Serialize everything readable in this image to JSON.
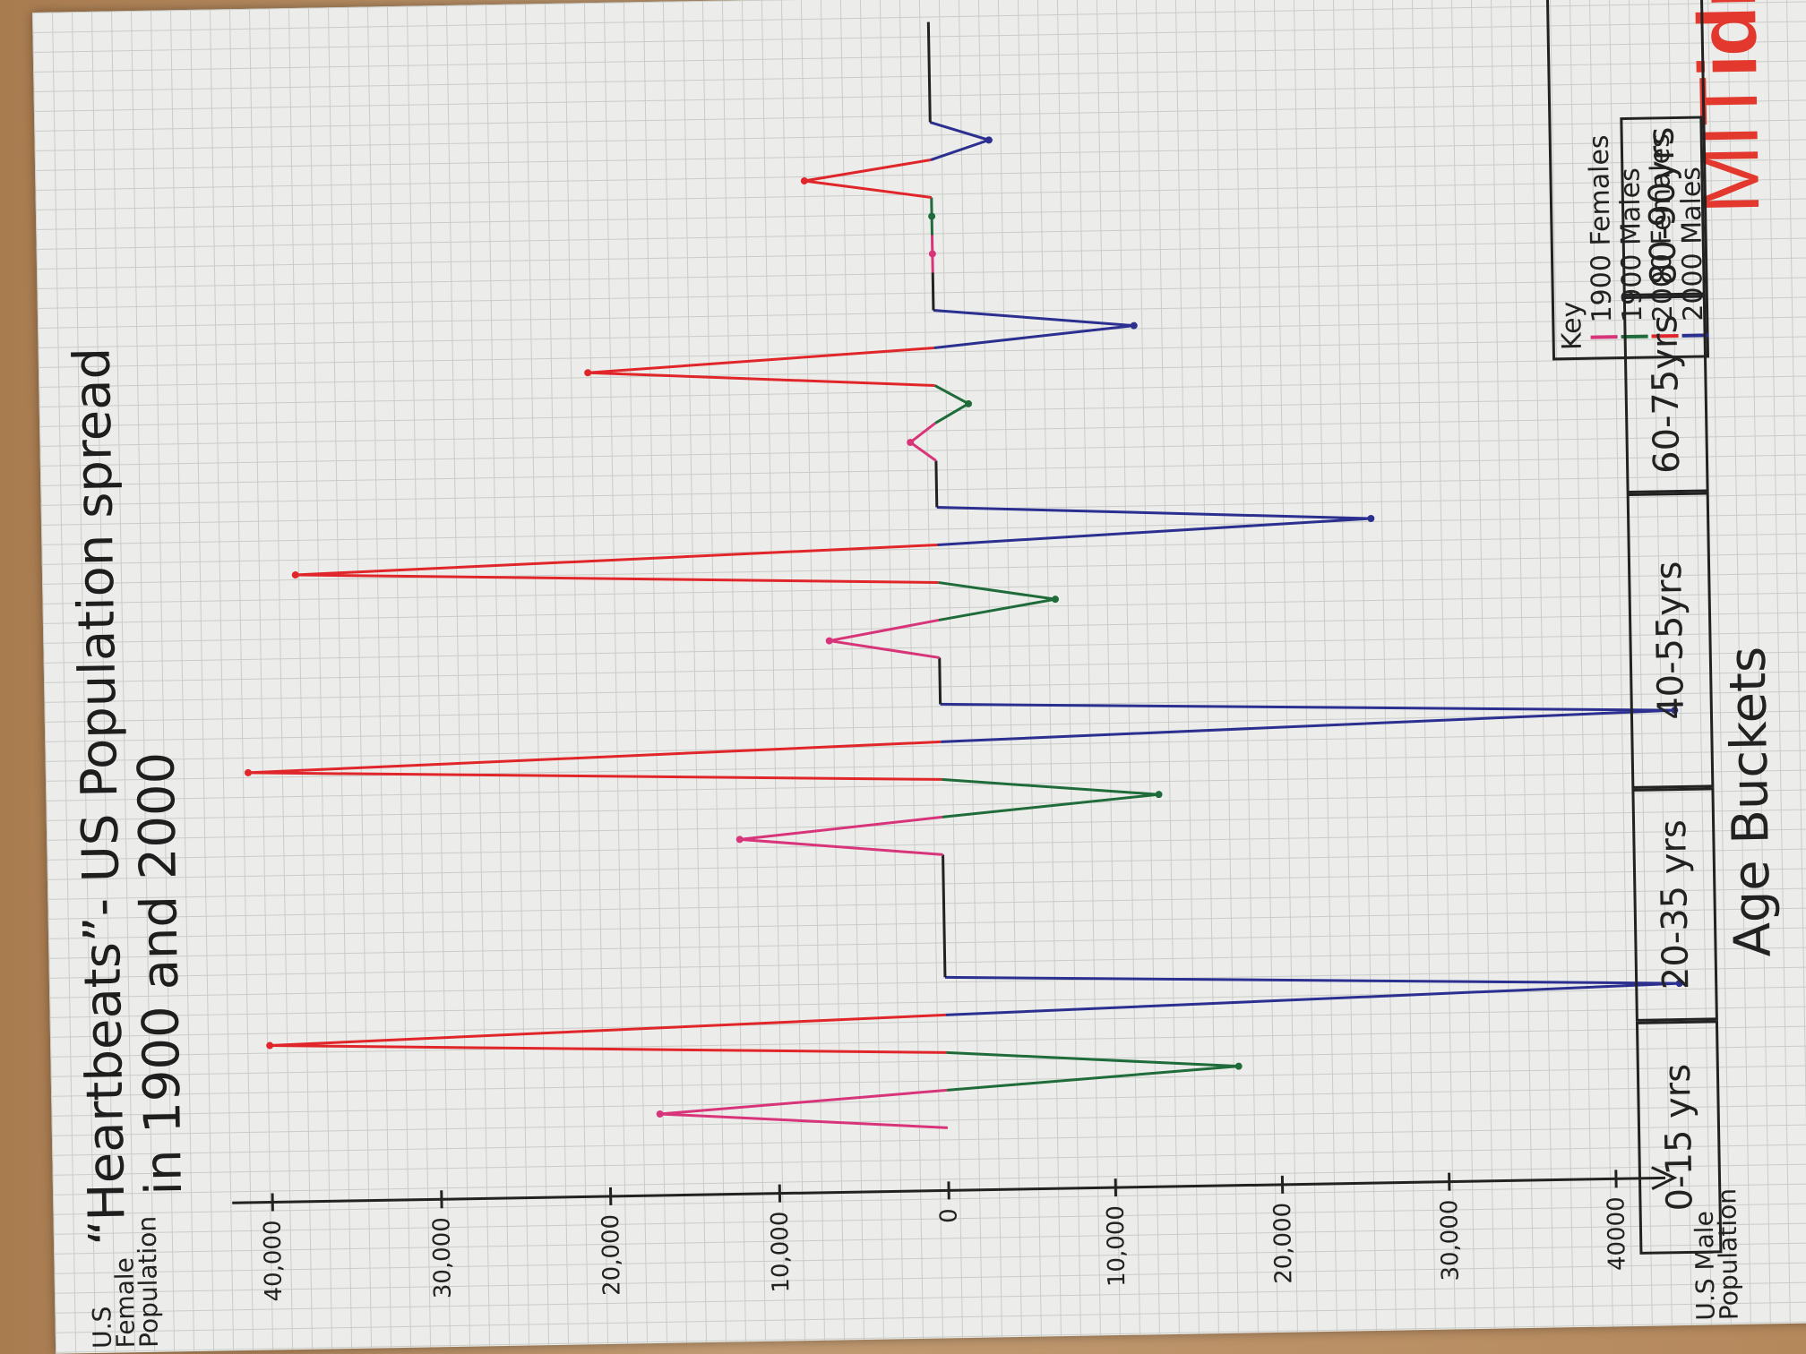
{
  "chart_data": {
    "type": "line",
    "title": "“Heartbeats”- US Population spread",
    "subtitle": "in 1900 and 2000",
    "xlabel": "Age Buckets",
    "y_upper_label": "U.S Female Population",
    "y_lower_label": "U.S Male Population",
    "y_ticks_female": [
      "40,000",
      "30,000",
      "20,000",
      "10,000"
    ],
    "y_ticks_male": [
      "0",
      "10,000",
      "20,000",
      "30,000",
      "40000"
    ],
    "ylim_female": [
      0,
      40000
    ],
    "ylim_male": [
      0,
      40000
    ],
    "categories": [
      "0-15 yrs",
      "20-35 yrs",
      "40-55yrs",
      "60-75yrs",
      "80-90yrs"
    ],
    "legend_title": "Key",
    "legend_position": "top-right",
    "grid": true,
    "series": [
      {
        "name": "1900 Females",
        "color": "#d8347a",
        "sex": "female",
        "values": [
          17000,
          12000,
          6500,
          1500,
          0
        ]
      },
      {
        "name": "1900 Males",
        "color": "#1f6b3a",
        "sex": "male",
        "values": [
          17500,
          13000,
          7000,
          2000,
          0
        ]
      },
      {
        "name": "2000 Females",
        "color": "#e0262a",
        "sex": "female",
        "values": [
          40000,
          41000,
          38000,
          20500,
          7500
        ]
      },
      {
        "name": "2000 Males",
        "color": "#2b2f8f",
        "sex": "male",
        "values": [
          44000,
          44000,
          26000,
          12000,
          3500
        ]
      }
    ]
  },
  "brand": {
    "mit": "MIT",
    "idm": "idm"
  }
}
